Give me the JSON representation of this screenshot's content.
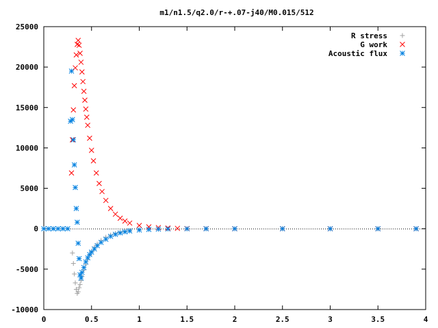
{
  "chart_data": {
    "type": "scatter",
    "title": "m1/n1.5/q2.0/r-+.07-j40/M0.015/512",
    "xlabel": "",
    "ylabel": "",
    "xlim": [
      0,
      4
    ],
    "ylim": [
      -10000,
      25000
    ],
    "x_ticks": [
      "0",
      "0.5",
      "1",
      "1.5",
      "2",
      "2.5",
      "3",
      "3.5",
      "4"
    ],
    "y_ticks": [
      "25000",
      "20000",
      "15000",
      "10000",
      "5000",
      "0",
      "-5000",
      "-10000"
    ],
    "legend_position": "top-right",
    "grid": false,
    "series": [
      {
        "name": "R stress",
        "marker": "plus",
        "color": "#a0a0a0",
        "points": [
          [
            0.3,
            -3000
          ],
          [
            0.31,
            -4300
          ],
          [
            0.32,
            -5600
          ],
          [
            0.33,
            -6700
          ],
          [
            0.34,
            -7500
          ],
          [
            0.35,
            -8000
          ],
          [
            0.36,
            -7800
          ],
          [
            0.37,
            -7300
          ],
          [
            0.38,
            -6900
          ],
          [
            0.39,
            -6400
          ],
          [
            0.4,
            -5900
          ],
          [
            0.42,
            -5100
          ],
          [
            0.44,
            -4400
          ],
          [
            0.46,
            -3800
          ],
          [
            0.48,
            -3300
          ],
          [
            0.5,
            -2800
          ],
          [
            0.53,
            -2300
          ],
          [
            0.56,
            -1900
          ],
          [
            0.6,
            -1450
          ],
          [
            0.65,
            -1050
          ],
          [
            0.7,
            -780
          ],
          [
            0.75,
            -580
          ],
          [
            0.8,
            -430
          ],
          [
            0.85,
            -320
          ],
          [
            0.9,
            -240
          ],
          [
            1.0,
            -140
          ],
          [
            1.1,
            -80
          ],
          [
            1.2,
            -45
          ],
          [
            1.3,
            -25
          ],
          [
            1.5,
            -8
          ],
          [
            1.7,
            -3
          ],
          [
            2.0,
            0
          ],
          [
            2.5,
            0
          ],
          [
            3.0,
            0
          ],
          [
            3.5,
            0
          ],
          [
            3.9,
            0
          ]
        ]
      },
      {
        "name": "G work",
        "marker": "cross",
        "color": "#ff0000",
        "points": [
          [
            0.29,
            6900
          ],
          [
            0.3,
            11000
          ],
          [
            0.31,
            14700
          ],
          [
            0.32,
            17700
          ],
          [
            0.33,
            19900
          ],
          [
            0.34,
            21500
          ],
          [
            0.35,
            22800
          ],
          [
            0.36,
            23300
          ],
          [
            0.37,
            22700
          ],
          [
            0.38,
            21700
          ],
          [
            0.39,
            20600
          ],
          [
            0.4,
            19400
          ],
          [
            0.41,
            18200
          ],
          [
            0.42,
            17000
          ],
          [
            0.43,
            15900
          ],
          [
            0.44,
            14800
          ],
          [
            0.45,
            13800
          ],
          [
            0.46,
            12800
          ],
          [
            0.48,
            11200
          ],
          [
            0.5,
            9700
          ],
          [
            0.52,
            8400
          ],
          [
            0.55,
            6900
          ],
          [
            0.58,
            5600
          ],
          [
            0.61,
            4600
          ],
          [
            0.65,
            3500
          ],
          [
            0.7,
            2500
          ],
          [
            0.75,
            1800
          ],
          [
            0.8,
            1300
          ],
          [
            0.85,
            950
          ],
          [
            0.9,
            700
          ],
          [
            1.0,
            400
          ],
          [
            1.1,
            230
          ],
          [
            1.2,
            140
          ],
          [
            1.3,
            80
          ],
          [
            1.4,
            45
          ],
          [
            1.5,
            25
          ],
          [
            1.7,
            8
          ],
          [
            2.0,
            0
          ],
          [
            2.5,
            0
          ],
          [
            3.0,
            0
          ],
          [
            3.5,
            0
          ],
          [
            3.9,
            0
          ]
        ]
      },
      {
        "name": "Acoustic flux",
        "marker": "star",
        "color": "#0080e0",
        "points": [
          [
            0.0,
            0
          ],
          [
            0.05,
            0
          ],
          [
            0.1,
            0
          ],
          [
            0.15,
            0
          ],
          [
            0.2,
            0
          ],
          [
            0.25,
            0
          ],
          [
            0.28,
            13300
          ],
          [
            0.29,
            19500
          ],
          [
            0.3,
            13500
          ],
          [
            0.31,
            11000
          ],
          [
            0.32,
            7900
          ],
          [
            0.33,
            5100
          ],
          [
            0.34,
            2500
          ],
          [
            0.35,
            800
          ],
          [
            0.36,
            -1800
          ],
          [
            0.37,
            -3700
          ],
          [
            0.38,
            -5700
          ],
          [
            0.39,
            -6100
          ],
          [
            0.4,
            -5400
          ],
          [
            0.42,
            -4800
          ],
          [
            0.44,
            -4100
          ],
          [
            0.46,
            -3600
          ],
          [
            0.48,
            -3200
          ],
          [
            0.5,
            -2900
          ],
          [
            0.53,
            -2500
          ],
          [
            0.56,
            -2100
          ],
          [
            0.6,
            -1700
          ],
          [
            0.65,
            -1300
          ],
          [
            0.7,
            -950
          ],
          [
            0.75,
            -700
          ],
          [
            0.8,
            -520
          ],
          [
            0.85,
            -380
          ],
          [
            0.9,
            -280
          ],
          [
            1.0,
            -160
          ],
          [
            1.1,
            -90
          ],
          [
            1.2,
            -50
          ],
          [
            1.3,
            -28
          ],
          [
            1.5,
            -9
          ],
          [
            1.7,
            -3
          ],
          [
            2.0,
            0
          ],
          [
            2.5,
            0
          ],
          [
            3.0,
            0
          ],
          [
            3.5,
            0
          ],
          [
            3.9,
            0
          ]
        ]
      }
    ]
  }
}
